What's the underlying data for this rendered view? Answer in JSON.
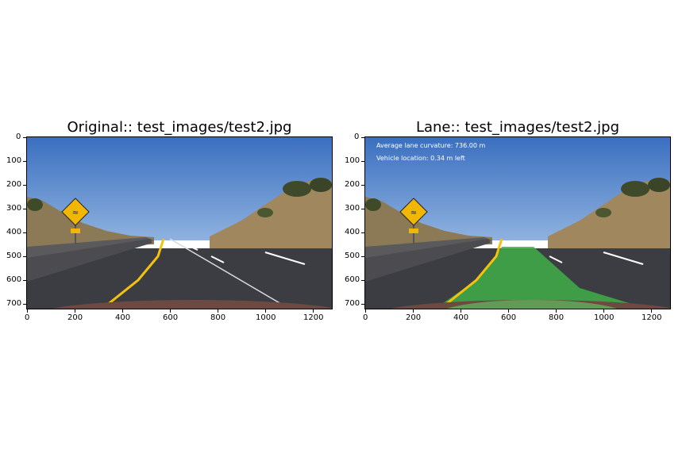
{
  "panels": [
    {
      "id": "original",
      "title": "Original:: test_images/test2.jpg",
      "x_ticks": [
        "0",
        "200",
        "400",
        "600",
        "800",
        "1000",
        "1200"
      ],
      "y_ticks": [
        "0",
        "100",
        "200",
        "300",
        "400",
        "500",
        "600",
        "700"
      ],
      "lane_overlay": false
    },
    {
      "id": "lane",
      "title": "Lane:: test_images/test2.jpg",
      "x_ticks": [
        "0",
        "200",
        "400",
        "600",
        "800",
        "1000",
        "1200"
      ],
      "y_ticks": [
        "0",
        "100",
        "200",
        "300",
        "400",
        "500",
        "600",
        "700"
      ],
      "lane_overlay": true,
      "overlay_lines": [
        "Average lane curvature: 736.00 m",
        "Vehicle location: 0.34 m left"
      ]
    }
  ],
  "colors": {
    "sky": "#3f78c6",
    "road": "#3c3d42",
    "lane_fill": "#3fae49",
    "yellow_line": "#f4c20d",
    "sign": "#f2b705"
  }
}
